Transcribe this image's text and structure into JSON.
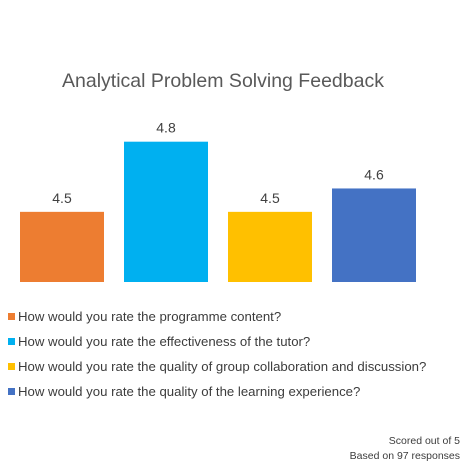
{
  "chart_data": {
    "type": "bar",
    "title": "Analytical Problem Solving Feedback",
    "categories": [
      "How would you rate the programme content?",
      "How would you rate the effectiveness of the tutor?",
      "How would you rate the quality of group collaboration and discussion?",
      "How would you rate the quality of the learning experience?"
    ],
    "values": [
      4.5,
      4.8,
      4.5,
      4.6
    ],
    "data_labels": [
      "4.5",
      "4.8",
      "4.5",
      "4.6"
    ],
    "colors": [
      "#ED7D31",
      "#00B0F0",
      "#FFC000",
      "#4472C4"
    ],
    "ylim": [
      4.2,
      4.85
    ],
    "axes_visible": false,
    "grid": false,
    "legend_position": "bottom"
  },
  "footnote": {
    "line1": "Scored out of 5",
    "line2": "Based on 97 responses"
  }
}
